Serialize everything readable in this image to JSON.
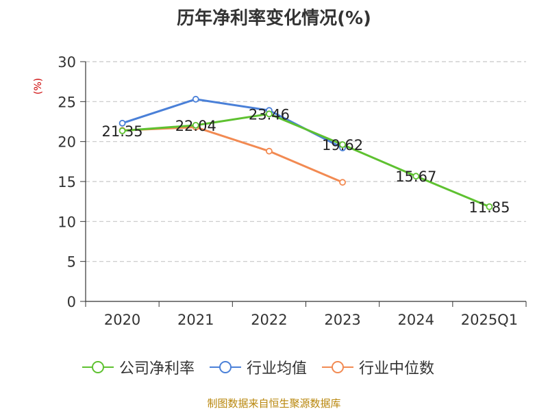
{
  "title": "历年净利率变化情况(%)",
  "unit": "(%)",
  "source": "制图数据来自恒生聚源数据库",
  "colors": {
    "company": "#5ec130",
    "industry_avg": "#4a80d8",
    "industry_median": "#f28a52",
    "grid": "#c8c8c8",
    "axis": "#333333",
    "text": "#333333",
    "unit": "#cc0000",
    "source": "#b8860b"
  },
  "chart_data": {
    "type": "line",
    "title": "历年净利率变化情况(%)",
    "categories": [
      "2020",
      "2021",
      "2022",
      "2023",
      "2024",
      "2025Q1"
    ],
    "ylim": [
      0,
      30
    ],
    "y_ticks": [
      0,
      5,
      10,
      15,
      20,
      25,
      30
    ],
    "grid": true,
    "legend_placement": "bottom",
    "series": [
      {
        "name": "公司净利率",
        "color": "#5ec130",
        "values": [
          21.35,
          22.04,
          23.46,
          19.62,
          15.67,
          11.85
        ],
        "labels": [
          "21.35",
          "22.04",
          "23.46",
          "19.62",
          "15.67",
          "11.85"
        ]
      },
      {
        "name": "行业均值",
        "color": "#4a80d8",
        "values": [
          22.3,
          25.3,
          23.9,
          19.2,
          null,
          null
        ]
      },
      {
        "name": "行业中位数",
        "color": "#f28a52",
        "values": [
          21.4,
          21.8,
          18.8,
          14.9,
          null,
          null
        ]
      }
    ]
  }
}
